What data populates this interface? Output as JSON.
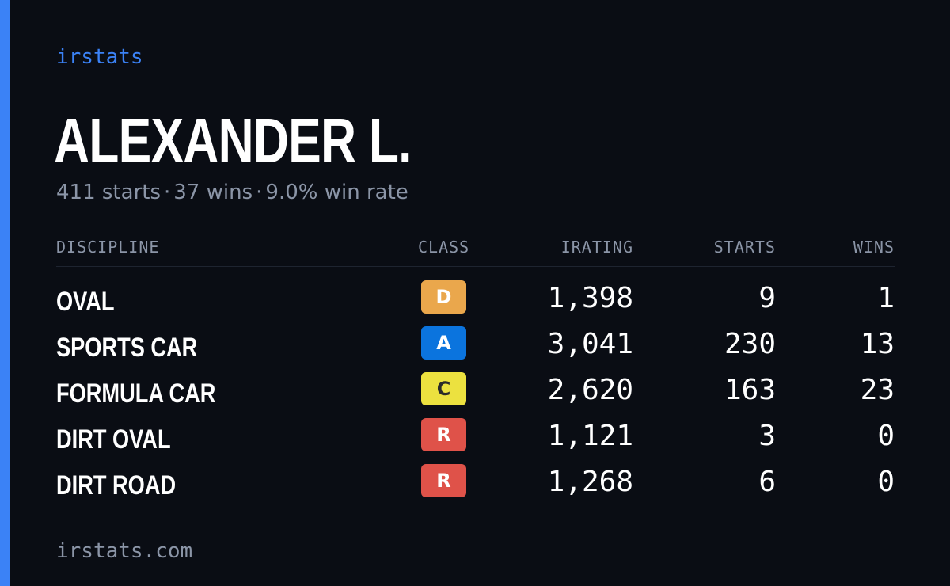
{
  "brand": "irstats",
  "player": {
    "name": "ALEXANDER L.",
    "starts_text": "411 starts",
    "wins_text": "37 wins",
    "win_rate_text": "9.0% win rate",
    "separator": "·"
  },
  "table": {
    "headers": {
      "discipline": "DISCIPLINE",
      "class": "CLASS",
      "irating": "IRATING",
      "starts": "STARTS",
      "wins": "WINS"
    },
    "rows": [
      {
        "discipline": "OVAL",
        "class": "D",
        "class_color": "#eaa74c",
        "class_text_color": "#ffffff",
        "irating": "1,398",
        "starts": "9",
        "wins": "1"
      },
      {
        "discipline": "SPORTS CAR",
        "class": "A",
        "class_color": "#0b74de",
        "class_text_color": "#ffffff",
        "irating": "3,041",
        "starts": "230",
        "wins": "13"
      },
      {
        "discipline": "FORMULA CAR",
        "class": "C",
        "class_color": "#ece13f",
        "class_text_color": "#2a2a2a",
        "irating": "2,620",
        "starts": "163",
        "wins": "23"
      },
      {
        "discipline": "DIRT OVAL",
        "class": "R",
        "class_color": "#df5249",
        "class_text_color": "#ffffff",
        "irating": "1,121",
        "starts": "3",
        "wins": "0"
      },
      {
        "discipline": "DIRT ROAD",
        "class": "R",
        "class_color": "#df5249",
        "class_text_color": "#ffffff",
        "irating": "1,268",
        "starts": "6",
        "wins": "0"
      }
    ]
  },
  "footer": "irstats.com",
  "colors": {
    "background": "#0a0d14",
    "accent": "#3b82f6",
    "muted": "#8b95a7"
  }
}
